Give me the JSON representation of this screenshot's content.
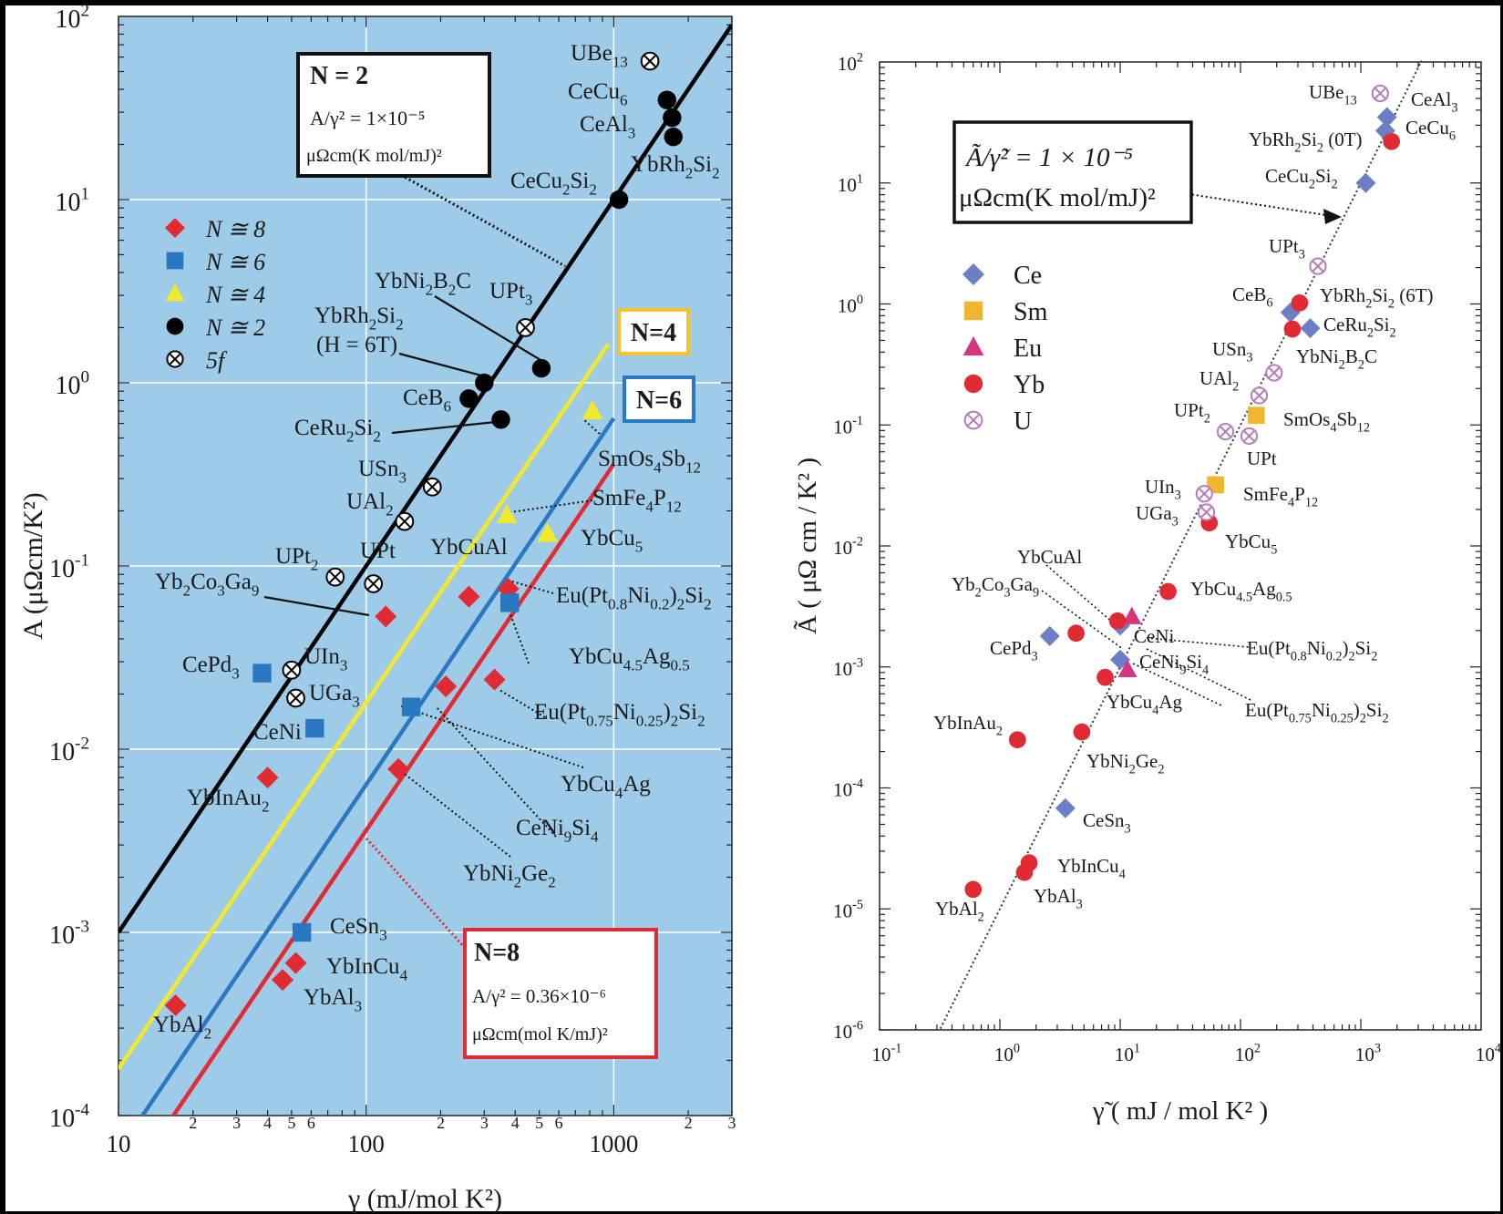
{
  "chart_data": [
    {
      "type": "scatter",
      "scale": "log-log",
      "xlabel": "γ (mJ/mol K²)",
      "ylabel": "A (μΩcm/K²)",
      "xlim": [
        10,
        3000
      ],
      "ylim": [
        0.0001,
        100
      ],
      "x_tick_labels": [
        "10",
        "100",
        "1000"
      ],
      "x_minor_labels": [
        "2",
        "3",
        "4",
        "5",
        "6",
        "2",
        "3",
        "4",
        "5",
        "6",
        "2",
        "3"
      ],
      "y_tick_labels": [
        {
          "base": "10",
          "exp": "-4"
        },
        {
          "base": "10",
          "exp": "-3"
        },
        {
          "base": "10",
          "exp": "-2"
        },
        {
          "base": "10",
          "exp": "-1"
        },
        {
          "base": "10",
          "exp": "0"
        },
        {
          "base": "10",
          "exp": "1"
        },
        {
          "base": "10",
          "exp": "2"
        }
      ],
      "background_color": "#9ecbe8",
      "grid": true,
      "legend": {
        "placement": "upper-left",
        "entries": [
          {
            "marker": "diamond",
            "color": "#e02a34",
            "label": "N ≅ 8"
          },
          {
            "marker": "square",
            "color": "#2b78c2",
            "label": "N ≅ 6"
          },
          {
            "marker": "triangle",
            "color": "#f2e92e",
            "label": "N ≅ 4"
          },
          {
            "marker": "circle",
            "color": "#000000",
            "label": "N ≅ 2"
          },
          {
            "marker": "otimes",
            "color": "#000000",
            "label": "5f"
          }
        ]
      },
      "lines": [
        {
          "name": "N=2",
          "color": "#000000",
          "A_over_gamma2": 1e-05
        },
        {
          "name": "N=4",
          "color": "#f2e92e",
          "A_over_gamma2": 1.8e-06
        },
        {
          "name": "N=6",
          "color": "#2b78c2",
          "A_over_gamma2": 6.4e-07
        },
        {
          "name": "N=8",
          "color": "#e02a34",
          "A_over_gamma2": 3.6e-07
        }
      ],
      "annotations": [
        {
          "title": "N = 2",
          "line1": "A/γ² = 1×10⁻⁵",
          "line2": "μΩcm(K mol/mJ)²",
          "color": "#000000"
        },
        {
          "title": "N=4",
          "color": "#f2c52e"
        },
        {
          "title": "N=6",
          "color": "#2b78c2"
        },
        {
          "title": "N=8",
          "line1": "A/γ² = 0.36×10⁻⁶",
          "line2": "μΩcm(mol K/mJ)²",
          "color": "#e02a34"
        }
      ],
      "series": [
        {
          "name": "N ≅ 8",
          "marker": "diamond",
          "color": "#e02a34",
          "points": [
            {
              "x": 17,
              "y": 0.0004,
              "label": "YbAl2"
            },
            {
              "x": 40,
              "y": 0.007,
              "label": "YbInAu2"
            },
            {
              "x": 46,
              "y": 0.00055,
              "label": "YbAl3"
            },
            {
              "x": 52,
              "y": 0.00068,
              "label": "YbInCu4"
            },
            {
              "x": 120,
              "y": 0.053,
              "label": "Yb2Co3Ga9"
            },
            {
              "x": 135,
              "y": 0.0078,
              "label": "YbNi2Ge2"
            },
            {
              "x": 210,
              "y": 0.022,
              "label": "YbCu4Ag"
            },
            {
              "x": 260,
              "y": 0.068,
              "label": "YbCuAl"
            },
            {
              "x": 330,
              "y": 0.024,
              "label": "Eu(Pt0.75Ni0.25)2Si2"
            },
            {
              "x": 375,
              "y": 0.075,
              "label": "Eu(Pt0.8Ni0.2)2Si2"
            }
          ]
        },
        {
          "name": "N ≅ 6",
          "marker": "square",
          "color": "#2b78c2",
          "points": [
            {
              "x": 38,
              "y": 0.026,
              "label": "CePd3"
            },
            {
              "x": 55,
              "y": 0.001,
              "label": "CeSn3"
            },
            {
              "x": 62,
              "y": 0.013,
              "label": "CeNi"
            },
            {
              "x": 152,
              "y": 0.017,
              "label": "CeNi9Si4"
            },
            {
              "x": 380,
              "y": 0.063,
              "label": "YbCu4.5Ag0.5"
            }
          ]
        },
        {
          "name": "N ≅ 4",
          "marker": "triangle",
          "color": "#f2e92e",
          "points": [
            {
              "x": 370,
              "y": 0.19,
              "label": "SmFe4P12"
            },
            {
              "x": 540,
              "y": 0.15,
              "label": "YbCu5"
            },
            {
              "x": 820,
              "y": 0.7,
              "label": "SmOs4Sb12"
            }
          ]
        },
        {
          "name": "N ≅ 2",
          "marker": "circle",
          "color": "#000000",
          "points": [
            {
              "x": 260,
              "y": 0.82,
              "label": "CeB6"
            },
            {
              "x": 300,
              "y": 1.0,
              "label": "YbRh2Si2 (H = 6T)"
            },
            {
              "x": 350,
              "y": 0.63,
              "label": "CeRu2Si2"
            },
            {
              "x": 510,
              "y": 1.2,
              "label": "YbNi2B2C"
            },
            {
              "x": 1050,
              "y": 10,
              "label": "CeCu2Si2"
            },
            {
              "x": 1640,
              "y": 35,
              "label": "CeCu6"
            },
            {
              "x": 1720,
              "y": 28,
              "label": "CeAl3"
            },
            {
              "x": 1740,
              "y": 22,
              "label": "YbRh2Si2"
            }
          ]
        },
        {
          "name": "5f",
          "marker": "otimes",
          "color": "#000000",
          "points": [
            {
              "x": 50,
              "y": 0.027,
              "label": "UIn3"
            },
            {
              "x": 52,
              "y": 0.019,
              "label": "UGa3"
            },
            {
              "x": 75,
              "y": 0.087,
              "label": "UPt2"
            },
            {
              "x": 107,
              "y": 0.08,
              "label": "UPt"
            },
            {
              "x": 143,
              "y": 0.175,
              "label": "UAl2"
            },
            {
              "x": 185,
              "y": 0.27,
              "label": "USn3"
            },
            {
              "x": 440,
              "y": 2.0,
              "label": "UPt3"
            },
            {
              "x": 1400,
              "y": 57,
              "label": "UBe13"
            }
          ]
        }
      ]
    },
    {
      "type": "scatter",
      "scale": "log-log",
      "xlabel": "γ̃ ( mJ / mol K² )",
      "ylabel": "Ã ( μΩ cm / K² )",
      "xlim": [
        0.1,
        10000
      ],
      "ylim": [
        1e-06,
        100
      ],
      "x_tick_labels": [
        {
          "base": "10",
          "exp": "-1"
        },
        {
          "base": "10",
          "exp": "0"
        },
        {
          "base": "10",
          "exp": "1"
        },
        {
          "base": "10",
          "exp": "2"
        },
        {
          "base": "10",
          "exp": "3"
        },
        {
          "base": "10",
          "exp": "4"
        }
      ],
      "y_tick_labels": [
        {
          "base": "10",
          "exp": "-6"
        },
        {
          "base": "10",
          "exp": "-5"
        },
        {
          "base": "10",
          "exp": "-4"
        },
        {
          "base": "10",
          "exp": "-3"
        },
        {
          "base": "10",
          "exp": "-2"
        },
        {
          "base": "10",
          "exp": "-1"
        },
        {
          "base": "10",
          "exp": "0"
        },
        {
          "base": "10",
          "exp": "1"
        },
        {
          "base": "10",
          "exp": "2"
        }
      ],
      "background_color": "#ffffff",
      "grid": false,
      "legend": {
        "placement": "upper-left",
        "entries": [
          {
            "marker": "diamond",
            "color": "#6c7fc4",
            "label": "Ce"
          },
          {
            "marker": "square",
            "color": "#f0b72e",
            "label": "Sm"
          },
          {
            "marker": "triangle",
            "color": "#d6357f",
            "label": "Eu"
          },
          {
            "marker": "circle",
            "color": "#e02a34",
            "label": "Yb"
          },
          {
            "marker": "otimes",
            "color": "#b57cbb",
            "label": "U"
          }
        ]
      },
      "lines": [
        {
          "color": "#333333",
          "style": "dotted",
          "A_over_gamma2": 1e-05
        }
      ],
      "annotations": [
        {
          "line1": "Ã/γ̃² = 1 × 10⁻⁵",
          "line2": "μΩcm(K mol/mJ)²"
        }
      ],
      "series": [
        {
          "name": "Ce",
          "marker": "diamond",
          "color": "#6c7fc4",
          "points": [
            {
              "x": 2.6,
              "y": 0.0018,
              "label": "CePd3"
            },
            {
              "x": 3.5,
              "y": 6.8e-05,
              "label": "CeSn3"
            },
            {
              "x": 10,
              "y": 0.0022,
              "label": "CeNi"
            },
            {
              "x": 10,
              "y": 0.00115,
              "label": "CeNi9Si4"
            },
            {
              "x": 260,
              "y": 0.85,
              "label": "CeB6"
            },
            {
              "x": 380,
              "y": 0.63,
              "label": "CeRu2Si2"
            },
            {
              "x": 1100,
              "y": 10,
              "label": "CeCu2Si2"
            },
            {
              "x": 1600,
              "y": 27,
              "label": "CeCu6"
            },
            {
              "x": 1650,
              "y": 35,
              "label": "CeAl3"
            }
          ]
        },
        {
          "name": "Sm",
          "marker": "square",
          "color": "#f0b72e",
          "points": [
            {
              "x": 62,
              "y": 0.032,
              "label": "SmFe4P12"
            },
            {
              "x": 135,
              "y": 0.12,
              "label": "SmOs4Sb12"
            }
          ]
        },
        {
          "name": "Eu",
          "marker": "triangle",
          "color": "#d6357f",
          "points": [
            {
              "x": 12.5,
              "y": 0.0026,
              "label": "Eu(Pt0.8Ni0.2)2Si2"
            },
            {
              "x": 11.5,
              "y": 0.00095,
              "label": "Eu(Pt0.75Ni0.25)2Si2"
            }
          ]
        },
        {
          "name": "Yb",
          "marker": "circle",
          "color": "#e02a34",
          "points": [
            {
              "x": 0.6,
              "y": 1.45e-05,
              "label": "YbAl2"
            },
            {
              "x": 1.4,
              "y": 0.00025,
              "label": "YbInAu2"
            },
            {
              "x": 1.6,
              "y": 2e-05,
              "label": "YbAl3"
            },
            {
              "x": 1.75,
              "y": 2.4e-05,
              "label": "YbInCu4"
            },
            {
              "x": 4.3,
              "y": 0.0019,
              "label": "Yb2Co3Ga9"
            },
            {
              "x": 4.8,
              "y": 0.00029,
              "label": "YbNi2Ge2"
            },
            {
              "x": 7.5,
              "y": 0.00082,
              "label": "YbCu4Ag"
            },
            {
              "x": 9.5,
              "y": 0.0024,
              "label": "YbCuAl"
            },
            {
              "x": 25,
              "y": 0.0042,
              "label": "YbCu4.5Ag0.5"
            },
            {
              "x": 55,
              "y": 0.0155,
              "label": "YbCu5"
            },
            {
              "x": 270,
              "y": 0.62,
              "label": "YbNi2B2C"
            },
            {
              "x": 310,
              "y": 1.02,
              "label": "YbRh2Si2 (6T)"
            },
            {
              "x": 1800,
              "y": 22,
              "label": "YbRh2Si2 (0T)"
            }
          ]
        },
        {
          "name": "U",
          "marker": "otimes",
          "color": "#b57cbb",
          "points": [
            {
              "x": 50,
              "y": 0.027,
              "label": "UIn3"
            },
            {
              "x": 52,
              "y": 0.019,
              "label": "UGa3"
            },
            {
              "x": 75,
              "y": 0.088,
              "label": "UPt2"
            },
            {
              "x": 118,
              "y": 0.081,
              "label": "UPt"
            },
            {
              "x": 143,
              "y": 0.175,
              "label": "UAl2"
            },
            {
              "x": 190,
              "y": 0.27,
              "label": "USn3"
            },
            {
              "x": 440,
              "y": 2.05,
              "label": "UPt3"
            },
            {
              "x": 1450,
              "y": 55,
              "label": "UBe13"
            }
          ]
        }
      ]
    }
  ]
}
